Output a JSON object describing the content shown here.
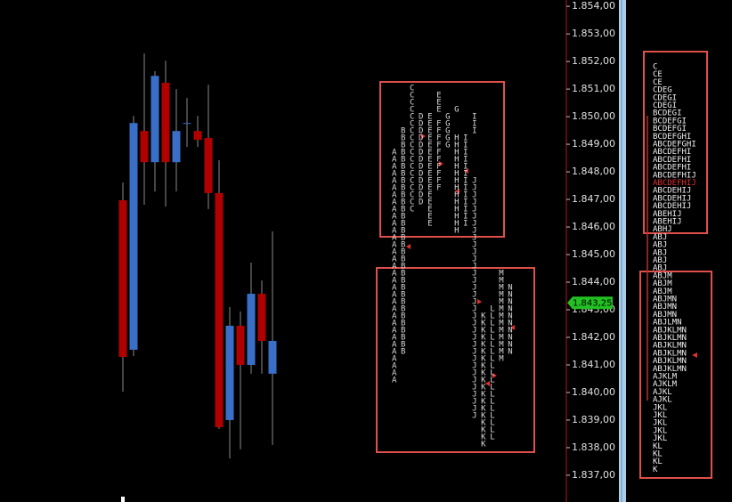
{
  "chart_data": {
    "type": "candlestick",
    "up_color": "#3a6fc8",
    "down_color": "#b00000",
    "wick_color": "#8a8a8a",
    "ylim": [
      1.83603,
      1.85423
    ],
    "yticks": [
      {
        "value": 1.854,
        "label": "1.854,00"
      },
      {
        "value": 1.853,
        "label": "1.853,00"
      },
      {
        "value": 1.852,
        "label": "1.852,00"
      },
      {
        "value": 1.851,
        "label": "1.851,00"
      },
      {
        "value": 1.85,
        "label": "1.850,00"
      },
      {
        "value": 1.849,
        "label": "1.849,00"
      },
      {
        "value": 1.848,
        "label": "1.848,00"
      },
      {
        "value": 1.847,
        "label": "1.847,00"
      },
      {
        "value": 1.846,
        "label": "1.846,00"
      },
      {
        "value": 1.845,
        "label": "1.845,00"
      },
      {
        "value": 1.844,
        "label": "1.844,00"
      },
      {
        "value": 1.843,
        "label": "1.843,00"
      },
      {
        "value": 1.842,
        "label": "1.842,00"
      },
      {
        "value": 1.841,
        "label": "1.841,00"
      },
      {
        "value": 1.84,
        "label": "1.840,00"
      },
      {
        "value": 1.839,
        "label": "1.839,00"
      },
      {
        "value": 1.838,
        "label": "1.838,00"
      },
      {
        "value": 1.837,
        "label": "1.837,00"
      }
    ],
    "current_price": {
      "value": 1.84325,
      "label": "1.843,25",
      "color": "#22c022"
    },
    "candles": [
      {
        "open": 1.84697,
        "high": 1.84761,
        "low": 1.84003,
        "close": 1.84129
      },
      {
        "open": 1.84155,
        "high": 1.85003,
        "low": 1.84132,
        "close": 1.84977
      },
      {
        "open": 1.84948,
        "high": 1.85229,
        "low": 1.84681,
        "close": 1.84835
      },
      {
        "open": 1.84835,
        "high": 1.85165,
        "low": 1.84729,
        "close": 1.85148
      },
      {
        "open": 1.85123,
        "high": 1.85203,
        "low": 1.84674,
        "close": 1.84835
      },
      {
        "open": 1.84835,
        "high": 1.851,
        "low": 1.84729,
        "close": 1.84948
      },
      {
        "open": 1.84977,
        "high": 1.85068,
        "low": 1.8489,
        "close": 1.84977
      },
      {
        "open": 1.84948,
        "high": 1.85003,
        "low": 1.8489,
        "close": 1.84916
      },
      {
        "open": 1.84923,
        "high": 1.85116,
        "low": 1.84665,
        "close": 1.84723
      },
      {
        "open": 1.84723,
        "high": 1.84842,
        "low": 1.83868,
        "close": 1.83874
      },
      {
        "open": 1.839,
        "high": 1.8431,
        "low": 1.83761,
        "close": 1.84242
      },
      {
        "open": 1.84242,
        "high": 1.84294,
        "low": 1.83794,
        "close": 1.841
      },
      {
        "open": 1.841,
        "high": 1.84471,
        "low": 1.84068,
        "close": 1.84358
      },
      {
        "open": 1.84358,
        "high": 1.84406,
        "low": 1.84068,
        "close": 1.84187
      },
      {
        "open": 1.84068,
        "high": 1.84584,
        "low": 1.8381,
        "close": 1.84187
      }
    ],
    "profiles": [
      {
        "rows": [
          "  C",
          "  C  E",
          "  C  E",
          "  C  E G",
          "  CDE G  I",
          "  CDEFG  I",
          " BCDEFG  I",
          " BCDEFGHI",
          " BCDEFGHI",
          "ABCDEF HI",
          "ABCDEF HI",
          "ABCDEF HI",
          "ABCDEF HI",
          "ABCDEF HIJ",
          "ABCDEF HIJ",
          "ABCDE  HIJ",
          "ABCDE  HIJ",
          "ABC E  HIJ",
          "AB  E  HIJ",
          "AB  E  HIJ",
          "AB     H J",
          "AB       J",
          "AB       J",
          "AB       J",
          "AB       J",
          "AB       J",
          "AB       J  M",
          "AB       J  M",
          "AB       J  MN",
          "AB       J  MN",
          "AB       J  MN",
          "AB       J LMN",
          "AB       JKLMN",
          "AB       JKLMN",
          "AB       JKLMN",
          "AB       JKLMN",
          "AB       JKLMN",
          "AB       JKLMN",
          "A        JKLM",
          "A        JKL",
          "A        JKL",
          "A        JKL",
          "         JKL",
          "         JKL",
          "         JKL",
          "         JKL",
          "         JKL",
          "          KL",
          "          KL",
          "          KL",
          "          K"
        ]
      },
      {
        "poc_row": 15,
        "poc_color": "#e03030",
        "rows": [
          "C",
          "CE",
          "CE",
          "CDEG",
          "CDEGI",
          "CDEGI",
          "BCDEGI",
          "BCDEFGI",
          "BCDEFGI",
          "BCDEFGHI",
          "ABCDEFGHI",
          "ABCDEFHI",
          "ABCDEFHI",
          "ABCDEFHI",
          "ABCDEFHIJ",
          "ABCDEFHIJ",
          "ABCDEHIJ",
          "ABCDEHIJ",
          "ABCDEHIJ",
          "ABEHIJ",
          "ABEHIJ",
          "ABHJ",
          "ABJ",
          "ABJ",
          "ABJ",
          "ABJ",
          "ABJ",
          "ABJM",
          "ABJM",
          "ABJM",
          "ABJMN",
          "ABJMN",
          "ABJMN",
          "ABJLMN",
          "ABJKLMN",
          "ABJKLMN",
          "ABJKLMN",
          "ABJKLMN",
          "ABJKLMN",
          "ABJKLMN",
          "AJKLM",
          "AJKLM",
          "AJKL",
          "AJKL",
          "JKL",
          "JKL",
          "JKL",
          "JKL",
          "JKL",
          "KL",
          "KL",
          "KL",
          "K"
        ]
      }
    ]
  }
}
